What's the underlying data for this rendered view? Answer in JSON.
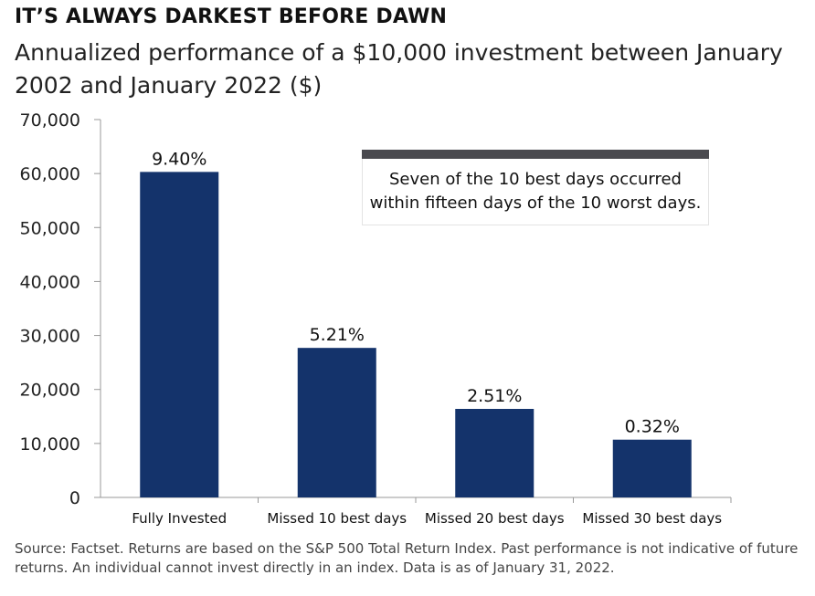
{
  "chart_data": {
    "type": "bar",
    "title": "IT’S ALWAYS DARKEST BEFORE DAWN",
    "subtitle": "Annualized performance of a $10,000 investment between January 2002 and January 2022 ($)",
    "categories": [
      "Fully Invested",
      "Missed 10 best days",
      "Missed 20 best days",
      "Missed 30 best days"
    ],
    "values": [
      60300,
      27700,
      16400,
      10700
    ],
    "data_labels": [
      "9.40%",
      "5.21%",
      "2.51%",
      "0.32%"
    ],
    "ylim": [
      0,
      70000
    ],
    "yticks": [
      0,
      10000,
      20000,
      30000,
      40000,
      50000,
      60000,
      70000
    ],
    "ytick_labels": [
      "0",
      "10,000",
      "20,000",
      "30,000",
      "40,000",
      "50,000",
      "60,000",
      "70,000"
    ],
    "bar_color": "#14336b",
    "grid": false,
    "annotation": "Seven of the 10 best days occurred within fifteen days of the 10 worst days.",
    "source": "Source: Factset. Returns are based on the S&P 500 Total Return Index. Past performance is not indicative of future returns. An individual cannot invest directly in an index. Data is as of January 31, 2022."
  }
}
